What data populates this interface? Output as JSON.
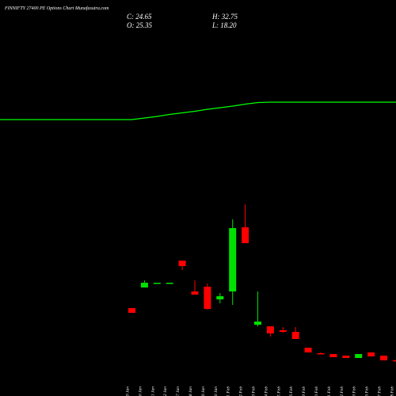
{
  "chart_data": {
    "type": "candlestick",
    "title": "FINNIFTY 27400  PE Options  Chart Munafasutra.com",
    "readout": {
      "close": "C: 24.65",
      "open": "O: 25.35",
      "high": "H: 32.75",
      "low": "L: 18.20"
    },
    "categories": [
      "19 Jan",
      "20 Jan",
      "21 Jan",
      "22 Jan",
      "27 Jan",
      "28 Jan",
      "29 Jan",
      "30 Jan",
      "01 Feb",
      "02 Feb",
      "03 Feb",
      "04 Feb",
      "05 Feb",
      "06 Feb",
      "09 Feb",
      "10 Feb",
      "11 Feb",
      "12 Feb",
      "13 Feb",
      "16 Feb",
      "17 Feb",
      "18 Feb"
    ],
    "open": [
      157,
      209,
      220,
      220,
      277,
      199,
      211,
      179,
      199,
      361,
      115,
      111,
      101,
      97,
      57,
      43,
      41,
      37,
      31,
      45,
      37,
      25.35
    ],
    "high": [
      157,
      227,
      221,
      221,
      277,
      227,
      219,
      195,
      381,
      419,
      199,
      111,
      109,
      109,
      57,
      45,
      41,
      37,
      41,
      45,
      37,
      32.75
    ],
    "low": [
      145,
      209,
      220,
      220,
      253,
      191,
      153,
      169,
      165,
      321,
      111,
      85,
      95,
      79,
      45,
      41,
      33,
      31,
      31,
      35,
      25,
      18.2
    ],
    "close": [
      145,
      221,
      221,
      221,
      263,
      191,
      155,
      187,
      359,
      321,
      123,
      93,
      97,
      79,
      45,
      41,
      33,
      31,
      41,
      35,
      25,
      24.65
    ],
    "up_color": "#00e000",
    "down_color": "#ff0000",
    "line": {
      "color": "#00ff00",
      "values": [
        633,
        637,
        641,
        646,
        650,
        654,
        659,
        663,
        667,
        672,
        676,
        677,
        677,
        677,
        677,
        677,
        677,
        677,
        677,
        677,
        677,
        677
      ]
    },
    "ylim": [
      0,
      900
    ]
  }
}
